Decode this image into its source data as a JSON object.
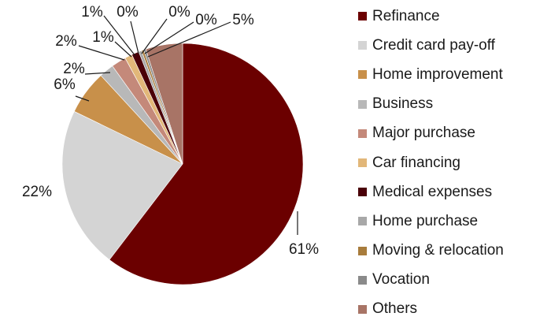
{
  "chart_data": {
    "type": "pie",
    "title": "",
    "legend_position": "right",
    "slices": [
      {
        "label": "Refinance",
        "value": 61,
        "value_label": "61%",
        "color": "#6b0000"
      },
      {
        "label": "Credit card pay-off",
        "value": 22,
        "value_label": "22%",
        "color": "#d4d4d4"
      },
      {
        "label": "Home improvement",
        "value": 6,
        "value_label": "6%",
        "color": "#c8904a"
      },
      {
        "label": "Business",
        "value": 2,
        "value_label": "2%",
        "color": "#b8b8b8"
      },
      {
        "label": "Major purchase",
        "value": 2,
        "value_label": "2%",
        "color": "#c4897a"
      },
      {
        "label": "Car financing",
        "value": 1,
        "value_label": "1%",
        "color": "#e2b779"
      },
      {
        "label": "Medical expenses",
        "value": 1,
        "value_label": "1%",
        "color": "#4a0008"
      },
      {
        "label": "Home purchase",
        "value": 0.4,
        "value_label": "0%",
        "color": "#a8a8a8"
      },
      {
        "label": "Moving & relocation",
        "value": 0.3,
        "value_label": "0%",
        "color": "#a87c3c"
      },
      {
        "label": "Vocation",
        "value": 0.3,
        "value_label": "0%",
        "color": "#8a8a8a"
      },
      {
        "label": "Others",
        "value": 5,
        "value_label": "5%",
        "color": "#a87466"
      }
    ]
  }
}
